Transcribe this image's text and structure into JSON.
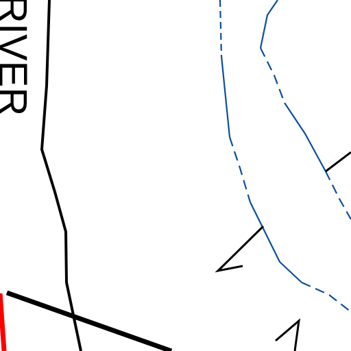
{
  "labels": {
    "river": "RIVER"
  }
}
